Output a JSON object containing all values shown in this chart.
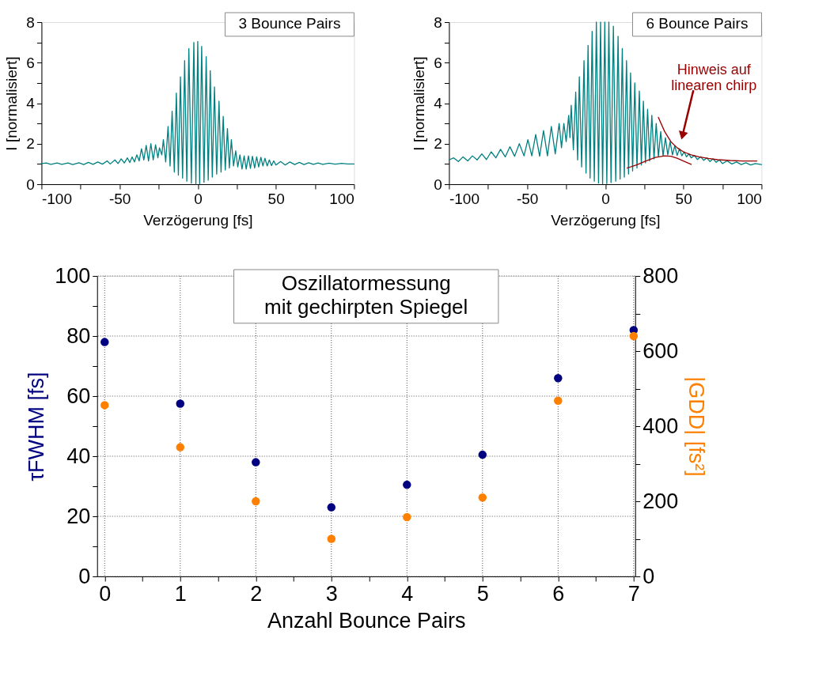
{
  "chart_data": [
    {
      "type": "line",
      "title": "3 Bounce Pairs",
      "xlabel": "Verzögerung [fs]",
      "ylabel": "I [normalisiert]",
      "xlim": [
        -100,
        100
      ],
      "xticks": [
        -100,
        {
          "value": -75,
          "label": null
        },
        -50,
        {
          "value": -25,
          "label": null
        },
        0,
        {
          "value": 25,
          "label": null
        },
        50,
        {
          "value": 75,
          "label": null
        },
        100
      ],
      "ylim": [
        0,
        8
      ],
      "yticks": [
        0,
        {
          "value": 1,
          "label": null
        },
        2,
        {
          "value": 3,
          "label": null
        },
        4,
        {
          "value": 5,
          "label": null
        },
        6,
        {
          "value": 7,
          "label": null
        },
        8
      ],
      "line_style": "solid",
      "series": [
        {
          "color": "#008080",
          "x": [
            -100,
            -97,
            -94,
            -90,
            -87,
            -83,
            -80,
            -76,
            -73,
            -70,
            -67,
            -64,
            -61,
            -58,
            -56,
            -53,
            -51,
            -49,
            -47,
            -45,
            -43.5,
            -42,
            -40.5,
            -39,
            -37.5,
            -36,
            -34.5,
            -33,
            -31.5,
            -30,
            -28.5,
            -27,
            -25.5,
            -24.5,
            -23,
            -22,
            -20.5,
            -19,
            -17.7,
            -16.4,
            -15,
            -13.7,
            -12.4,
            -11.1,
            -9.7,
            -8.4,
            -7,
            -5.7,
            -4.1,
            -2.5,
            -1.2,
            0,
            1.2,
            2.5,
            4,
            5.4,
            6.7,
            8,
            9.3,
            10.7,
            12.1,
            13.6,
            14.9,
            16.3,
            17.6,
            19,
            20.2,
            21.5,
            22.9,
            24.3,
            25.6,
            27,
            28.3,
            29.7,
            31,
            32.4,
            33.7,
            35,
            36.4,
            37.7,
            39,
            40.4,
            41.7,
            43,
            44.4,
            45.8,
            47.2,
            48.6,
            50,
            53,
            56,
            59,
            62,
            65,
            68,
            71,
            74,
            77,
            80,
            84,
            88,
            92,
            96,
            100
          ],
          "values": [
            1.02,
            1.05,
            0.98,
            1.05,
            0.98,
            1.05,
            0.97,
            1.06,
            0.97,
            1.08,
            0.98,
            1.1,
            0.99,
            1.15,
            1.0,
            1.2,
            1.02,
            1.25,
            1.05,
            1.3,
            1.07,
            1.35,
            1.1,
            1.45,
            1.15,
            1.75,
            1.2,
            1.92,
            1.15,
            2.0,
            1.2,
            1.95,
            1.3,
            1.8,
            1.45,
            2.2,
            1.1,
            2.85,
            0.9,
            3.6,
            0.6,
            4.5,
            0.45,
            5.3,
            0.3,
            6.1,
            0.15,
            6.7,
            0.05,
            7.0,
            0.0,
            7.05,
            0.02,
            6.8,
            0.1,
            6.3,
            0.2,
            5.6,
            0.35,
            4.8,
            0.5,
            4.1,
            0.6,
            3.35,
            0.7,
            2.75,
            0.8,
            2.2,
            0.9,
            1.65,
            0.85,
            1.45,
            0.75,
            1.4,
            0.75,
            1.4,
            0.78,
            1.38,
            0.8,
            1.35,
            0.85,
            1.33,
            0.9,
            1.28,
            0.9,
            1.2,
            0.92,
            1.15,
            0.95,
            1.12,
            0.95,
            1.1,
            0.97,
            1.08,
            0.97,
            1.06,
            0.98,
            1.05,
            0.98,
            1.04,
            0.99,
            1.03,
            1.0,
            1.0
          ]
        }
      ]
    },
    {
      "type": "line",
      "title": "6 Bounce Pairs",
      "xlabel": "Verzögerung [fs]",
      "ylabel": "I [normalisiert]",
      "xlim": [
        -100,
        100
      ],
      "xticks": [
        -100,
        {
          "value": -75,
          "label": null
        },
        -50,
        {
          "value": -25,
          "label": null
        },
        0,
        {
          "value": 25,
          "label": null
        },
        50,
        {
          "value": 75,
          "label": null
        },
        100
      ],
      "ylim": [
        0,
        8
      ],
      "yticks": [
        0,
        {
          "value": 1,
          "label": null
        },
        2,
        {
          "value": 3,
          "label": null
        },
        4,
        {
          "value": 5,
          "label": null
        },
        6,
        {
          "value": 7,
          "label": null
        },
        8
      ],
      "line_style": "solid",
      "annotations": [
        {
          "text": "Hinweis auf\nlinearen chirp",
          "x": 49.4,
          "y": 2.4
        }
      ],
      "series": [
        {
          "color": "#008080",
          "x": [
            -100,
            -97,
            -94,
            -91,
            -88,
            -85,
            -82,
            -79,
            -76,
            -73,
            -70,
            -67,
            -64,
            -61,
            -58,
            -55,
            -52,
            -49.5,
            -47,
            -44.5,
            -42,
            -39.5,
            -37,
            -34.5,
            -32,
            -29.5,
            -28,
            -26.5,
            -25,
            -23.4,
            -22.6,
            -21.8,
            -20.4,
            -18.9,
            -17.7,
            -16.6,
            -15.1,
            -13.6,
            -12.3,
            -11,
            -9.7,
            -8.4,
            -7,
            -5.7,
            -4.3,
            -3,
            -1.7,
            -0.3,
            1,
            2.3,
            3.7,
            5.2,
            6.7,
            8.2,
            9.5,
            10.9,
            12.2,
            13.6,
            14.9,
            16.2,
            17.5,
            18.9,
            20.3,
            21.8,
            23.1,
            24.4,
            25.7,
            27.1,
            28.4,
            29.8,
            31.2,
            32.6,
            34,
            35.5,
            37,
            38.5,
            40,
            41.5,
            43,
            44.5,
            46,
            47.5,
            49,
            50.5,
            52,
            53.5,
            55,
            57,
            59,
            61,
            63,
            65,
            67,
            69,
            71,
            73,
            75,
            78,
            81,
            84,
            87,
            90,
            93,
            96,
            100
          ],
          "values": [
            1.2,
            1.3,
            1.12,
            1.35,
            1.15,
            1.4,
            1.2,
            1.5,
            1.22,
            1.6,
            1.3,
            1.72,
            1.35,
            1.85,
            1.38,
            2.0,
            1.4,
            2.2,
            1.4,
            2.45,
            1.38,
            2.65,
            1.4,
            2.85,
            1.5,
            3.0,
            1.8,
            3.0,
            2.1,
            3.4,
            2.3,
            3.9,
            1.7,
            4.55,
            1.2,
            5.3,
            0.85,
            6.1,
            0.55,
            6.85,
            0.3,
            7.55,
            0.15,
            8.0,
            0.05,
            8.0,
            0.02,
            8.0,
            0.03,
            8.0,
            0.08,
            7.8,
            0.15,
            7.3,
            0.25,
            6.7,
            0.35,
            6.1,
            0.5,
            5.5,
            0.65,
            5.0,
            0.8,
            4.6,
            0.95,
            4.1,
            1.05,
            3.7,
            1.15,
            3.4,
            1.25,
            3.0,
            1.35,
            2.6,
            1.4,
            2.3,
            1.45,
            2.1,
            1.45,
            1.9,
            1.42,
            1.75,
            1.4,
            1.6,
            1.35,
            1.5,
            1.3,
            1.42,
            1.22,
            1.36,
            1.18,
            1.3,
            1.12,
            1.25,
            1.08,
            1.2,
            1.02,
            1.15,
            1.0,
            1.1,
            0.97,
            1.06,
            0.95,
            1.02,
            0.97
          ]
        },
        {
          "color": "#990000",
          "x": [
            34,
            38,
            42,
            46,
            50,
            55,
            60,
            66,
            72,
            80,
            88,
            97
          ],
          "values": [
            3.3,
            2.6,
            2.1,
            1.8,
            1.6,
            1.45,
            1.35,
            1.27,
            1.21,
            1.17,
            1.15,
            1.15
          ]
        },
        {
          "color": "#990000",
          "x": [
            14,
            20,
            26,
            32,
            38,
            42,
            46,
            50,
            55
          ],
          "values": [
            0.8,
            0.95,
            1.15,
            1.32,
            1.4,
            1.38,
            1.28,
            1.15,
            0.98
          ]
        }
      ]
    },
    {
      "type": "scatter",
      "title": "Oszillatormessung\nmit gechirpten Spiegel",
      "xlabel": "Anzahl Bounce Pairs",
      "ylabel": "τFWHM [fs]",
      "y2label": "|GDD| [fs²]",
      "xlim": [
        -0.1,
        7.02
      ],
      "xticks": [
        0,
        {
          "value": 0.5,
          "label": null
        },
        1,
        {
          "value": 1.5,
          "label": null
        },
        2,
        {
          "value": 2.5,
          "label": null
        },
        3,
        {
          "value": 3.5,
          "label": null
        },
        4,
        {
          "value": 4.5,
          "label": null
        },
        5,
        {
          "value": 5.5,
          "label": null
        },
        6,
        {
          "value": 6.5,
          "label": null
        },
        7
      ],
      "ylim": [
        0,
        100
      ],
      "yticks": [
        0,
        {
          "value": 10,
          "label": null
        },
        20,
        {
          "value": 30,
          "label": null
        },
        40,
        {
          "value": 50,
          "label": null
        },
        60,
        {
          "value": 70,
          "label": null
        },
        80,
        {
          "value": 90,
          "label": null
        },
        100
      ],
      "y2lim": [
        0,
        800
      ],
      "y2ticks": [
        0,
        {
          "value": 100,
          "label": null
        },
        200,
        {
          "value": 300,
          "label": null
        },
        400,
        {
          "value": 500,
          "label": null
        },
        600,
        {
          "value": 700,
          "label": null
        },
        800
      ],
      "grid": true,
      "marker": "circle",
      "series": [
        {
          "color": "#000080",
          "x": [
            0,
            1,
            2,
            3,
            4,
            5,
            6,
            7
          ],
          "values": [
            78,
            57.5,
            38,
            23,
            30.5,
            40.5,
            66,
            82
          ]
        },
        {
          "color": "#ff8000",
          "axis": "y2",
          "x": [
            0,
            1,
            2,
            3,
            4,
            5,
            6,
            7
          ],
          "values": [
            456,
            344,
            200,
            100,
            158,
            210,
            468,
            640
          ]
        }
      ]
    }
  ]
}
